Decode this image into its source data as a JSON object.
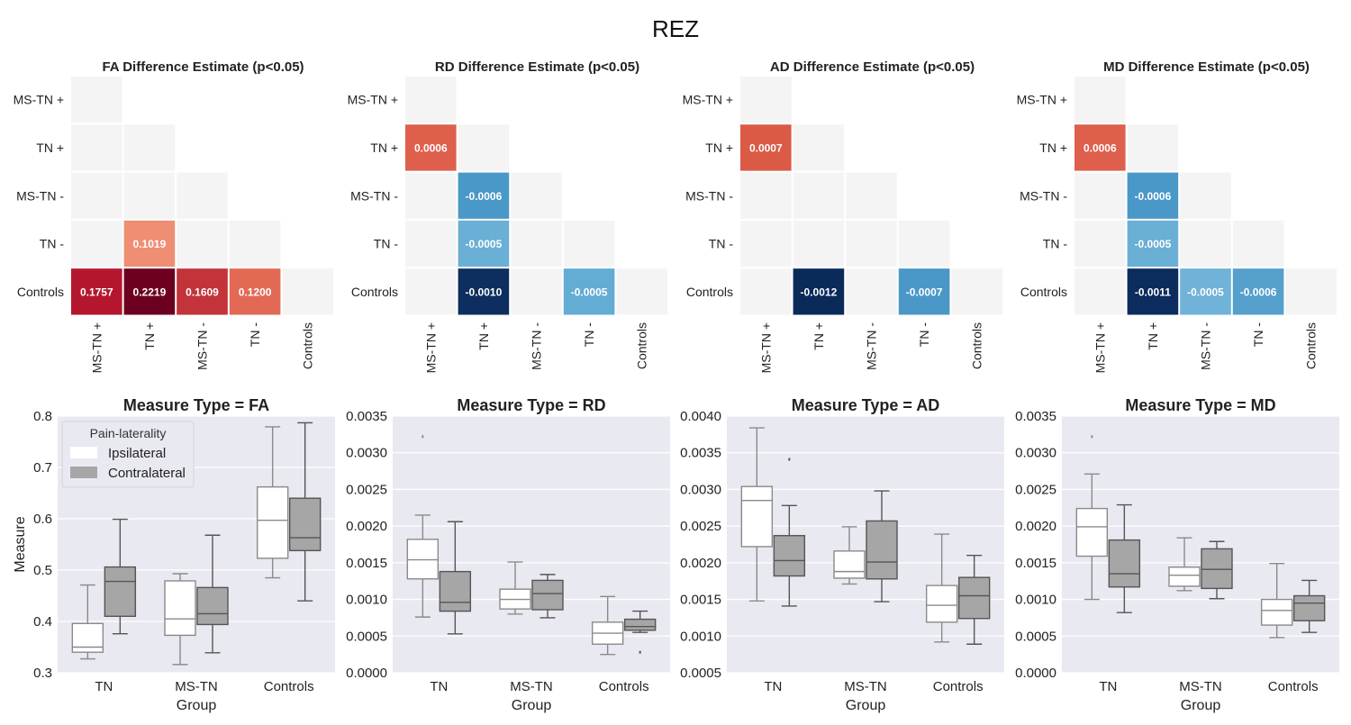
{
  "figure": {
    "title": "REZ"
  },
  "heatmaps": {
    "groups": [
      "MS-TN +",
      "TN +",
      "MS-TN -",
      "TN -",
      "Controls"
    ],
    "empty_color": "#f4f4f4",
    "panels": [
      {
        "title": "FA Difference Estimate (p<0.05)",
        "cells": [
          {
            "row": "TN -",
            "col": "TN +",
            "value": 0.1019,
            "label": "0.1019",
            "color": "#ef8e72"
          },
          {
            "row": "Controls",
            "col": "MS-TN +",
            "value": 0.1757,
            "label": "0.1757",
            "color": "#b4172d"
          },
          {
            "row": "Controls",
            "col": "TN +",
            "value": 0.2219,
            "label": "0.2219",
            "color": "#6d0020"
          },
          {
            "row": "Controls",
            "col": "MS-TN -",
            "value": 0.1609,
            "label": "0.1609",
            "color": "#c2333a"
          },
          {
            "row": "Controls",
            "col": "TN -",
            "value": 0.12,
            "label": "0.1200",
            "color": "#e26a55"
          }
        ]
      },
      {
        "title": "RD Difference Estimate (p<0.05)",
        "cells": [
          {
            "row": "TN +",
            "col": "MS-TN +",
            "value": 0.0006,
            "label": "0.0006",
            "color": "#de5f4c"
          },
          {
            "row": "MS-TN -",
            "col": "TN +",
            "value": -0.0006,
            "label": "-0.0006",
            "color": "#4a98c8"
          },
          {
            "row": "TN -",
            "col": "TN +",
            "value": -0.0005,
            "label": "-0.0005",
            "color": "#6aafd6"
          },
          {
            "row": "Controls",
            "col": "TN +",
            "value": -0.001,
            "label": "-0.0010",
            "color": "#0d2e5e"
          },
          {
            "row": "Controls",
            "col": "TN -",
            "value": -0.0005,
            "label": "-0.0005",
            "color": "#63acd4"
          }
        ]
      },
      {
        "title": "AD Difference Estimate (p<0.05)",
        "cells": [
          {
            "row": "TN +",
            "col": "MS-TN +",
            "value": 0.0007,
            "label": "0.0007",
            "color": "#da5a46"
          },
          {
            "row": "Controls",
            "col": "TN +",
            "value": -0.0012,
            "label": "-0.0012",
            "color": "#0a2a5a"
          },
          {
            "row": "Controls",
            "col": "TN -",
            "value": -0.0007,
            "label": "-0.0007",
            "color": "#4a98c8"
          }
        ]
      },
      {
        "title": "MD Difference Estimate (p<0.05)",
        "cells": [
          {
            "row": "TN +",
            "col": "MS-TN +",
            "value": 0.0006,
            "label": "0.0006",
            "color": "#de5f4c"
          },
          {
            "row": "MS-TN -",
            "col": "TN +",
            "value": -0.0006,
            "label": "-0.0006",
            "color": "#4a98c8"
          },
          {
            "row": "TN -",
            "col": "TN +",
            "value": -0.0005,
            "label": "-0.0005",
            "color": "#6aafd6"
          },
          {
            "row": "Controls",
            "col": "TN +",
            "value": -0.0011,
            "label": "-0.0011",
            "color": "#0b2c5c"
          },
          {
            "row": "Controls",
            "col": "MS-TN -",
            "value": -0.0005,
            "label": "-0.0005",
            "color": "#70b2d8"
          },
          {
            "row": "Controls",
            "col": "TN -",
            "value": -0.0006,
            "label": "-0.0006",
            "color": "#55a0cd"
          }
        ]
      }
    ]
  },
  "chart_data": [
    {
      "type": "boxplot",
      "title": "Measure Type = FA",
      "xlabel": "Group",
      "ylabel": "Measure",
      "categories": [
        "TN",
        "MS-TN",
        "Controls"
      ],
      "ylim": [
        0.3,
        0.8
      ],
      "yticks": [
        "0.3",
        "0.4",
        "0.5",
        "0.6",
        "0.7",
        "0.8"
      ],
      "legend": {
        "title": "Pain-laterality",
        "position": "top-left"
      },
      "series": [
        {
          "name": "Ipsilateral",
          "color": "#ffffff",
          "line": "#8a8a8a",
          "boxes": [
            {
              "whislo": 0.327,
              "q1": 0.34,
              "med": 0.35,
              "q3": 0.396,
              "whishi": 0.471,
              "fliers": []
            },
            {
              "whislo": 0.316,
              "q1": 0.373,
              "med": 0.405,
              "q3": 0.479,
              "whishi": 0.493,
              "fliers": []
            },
            {
              "whislo": 0.485,
              "q1": 0.523,
              "med": 0.597,
              "q3": 0.662,
              "whishi": 0.779,
              "fliers": []
            }
          ]
        },
        {
          "name": "Contralateral",
          "color": "#a6a6a6",
          "line": "#555555",
          "boxes": [
            {
              "whislo": 0.376,
              "q1": 0.41,
              "med": 0.478,
              "q3": 0.506,
              "whishi": 0.599,
              "fliers": []
            },
            {
              "whislo": 0.339,
              "q1": 0.394,
              "med": 0.415,
              "q3": 0.466,
              "whishi": 0.568,
              "fliers": []
            },
            {
              "whislo": 0.44,
              "q1": 0.538,
              "med": 0.563,
              "q3": 0.64,
              "whishi": 0.787,
              "fliers": []
            }
          ]
        }
      ]
    },
    {
      "type": "boxplot",
      "title": "Measure Type = RD",
      "xlabel": "Group",
      "ylabel": "",
      "categories": [
        "TN",
        "MS-TN",
        "Controls"
      ],
      "ylim": [
        0.0,
        0.0035
      ],
      "yticks": [
        "0.0000",
        "0.0005",
        "0.0010",
        "0.0015",
        "0.0020",
        "0.0025",
        "0.0030",
        "0.0035"
      ],
      "series": [
        {
          "name": "Ipsilateral",
          "color": "#ffffff",
          "line": "#8a8a8a",
          "boxes": [
            {
              "whislo": 0.00076,
              "q1": 0.00128,
              "med": 0.00154,
              "q3": 0.00182,
              "whishi": 0.00215,
              "fliers": [
                0.00322
              ]
            },
            {
              "whislo": 0.0008,
              "q1": 0.00087,
              "med": 0.001,
              "q3": 0.00114,
              "whishi": 0.00151,
              "fliers": []
            },
            {
              "whislo": 0.00025,
              "q1": 0.00039,
              "med": 0.00054,
              "q3": 0.00069,
              "whishi": 0.00104,
              "fliers": []
            }
          ]
        },
        {
          "name": "Contralateral",
          "color": "#a6a6a6",
          "line": "#555555",
          "boxes": [
            {
              "whislo": 0.00053,
              "q1": 0.00084,
              "med": 0.00096,
              "q3": 0.00138,
              "whishi": 0.00206,
              "fliers": []
            },
            {
              "whislo": 0.00075,
              "q1": 0.00086,
              "med": 0.00108,
              "q3": 0.00126,
              "whishi": 0.00134,
              "fliers": []
            },
            {
              "whislo": 0.00055,
              "q1": 0.00058,
              "med": 0.00063,
              "q3": 0.00073,
              "whishi": 0.00084,
              "fliers": [
                0.00028
              ]
            }
          ]
        }
      ]
    },
    {
      "type": "boxplot",
      "title": "Measure Type = AD",
      "xlabel": "Group",
      "ylabel": "",
      "categories": [
        "TN",
        "MS-TN",
        "Controls"
      ],
      "ylim": [
        0.0005,
        0.004
      ],
      "yticks": [
        "0.0005",
        "0.0010",
        "0.0015",
        "0.0020",
        "0.0025",
        "0.0030",
        "0.0035",
        "0.0040"
      ],
      "series": [
        {
          "name": "Ipsilateral",
          "color": "#ffffff",
          "line": "#8a8a8a",
          "boxes": [
            {
              "whislo": 0.00148,
              "q1": 0.00222,
              "med": 0.00285,
              "q3": 0.00304,
              "whishi": 0.00384,
              "fliers": []
            },
            {
              "whislo": 0.00171,
              "q1": 0.00179,
              "med": 0.00188,
              "q3": 0.00216,
              "whishi": 0.00249,
              "fliers": []
            },
            {
              "whislo": 0.00092,
              "q1": 0.00119,
              "med": 0.00142,
              "q3": 0.00169,
              "whishi": 0.00239,
              "fliers": []
            }
          ]
        },
        {
          "name": "Contralateral",
          "color": "#a6a6a6",
          "line": "#555555",
          "boxes": [
            {
              "whislo": 0.00141,
              "q1": 0.00182,
              "med": 0.00203,
              "q3": 0.00237,
              "whishi": 0.00278,
              "fliers": [
                0.00341
              ]
            },
            {
              "whislo": 0.00147,
              "q1": 0.00178,
              "med": 0.00201,
              "q3": 0.00257,
              "whishi": 0.00298,
              "fliers": []
            },
            {
              "whislo": 0.00089,
              "q1": 0.00124,
              "med": 0.00155,
              "q3": 0.0018,
              "whishi": 0.0021,
              "fliers": []
            }
          ]
        }
      ]
    },
    {
      "type": "boxplot",
      "title": "Measure Type = MD",
      "xlabel": "Group",
      "ylabel": "",
      "categories": [
        "TN",
        "MS-TN",
        "Controls"
      ],
      "ylim": [
        0.0,
        0.0035
      ],
      "yticks": [
        "0.0000",
        "0.0005",
        "0.0010",
        "0.0015",
        "0.0020",
        "0.0025",
        "0.0030",
        "0.0035"
      ],
      "series": [
        {
          "name": "Ipsilateral",
          "color": "#ffffff",
          "line": "#8a8a8a",
          "boxes": [
            {
              "whislo": 0.001,
              "q1": 0.00159,
              "med": 0.00199,
              "q3": 0.00224,
              "whishi": 0.00271,
              "fliers": [
                0.00322
              ]
            },
            {
              "whislo": 0.00112,
              "q1": 0.00118,
              "med": 0.00133,
              "q3": 0.00144,
              "whishi": 0.00184,
              "fliers": []
            },
            {
              "whislo": 0.00048,
              "q1": 0.00065,
              "med": 0.00085,
              "q3": 0.001,
              "whishi": 0.00149,
              "fliers": []
            }
          ]
        },
        {
          "name": "Contralateral",
          "color": "#a6a6a6",
          "line": "#555555",
          "boxes": [
            {
              "whislo": 0.00082,
              "q1": 0.00117,
              "med": 0.00135,
              "q3": 0.00181,
              "whishi": 0.00229,
              "fliers": []
            },
            {
              "whislo": 0.00101,
              "q1": 0.00115,
              "med": 0.00141,
              "q3": 0.00169,
              "whishi": 0.00179,
              "fliers": []
            },
            {
              "whislo": 0.00055,
              "q1": 0.00071,
              "med": 0.00095,
              "q3": 0.00105,
              "whishi": 0.00126,
              "fliers": []
            }
          ]
        }
      ]
    }
  ]
}
